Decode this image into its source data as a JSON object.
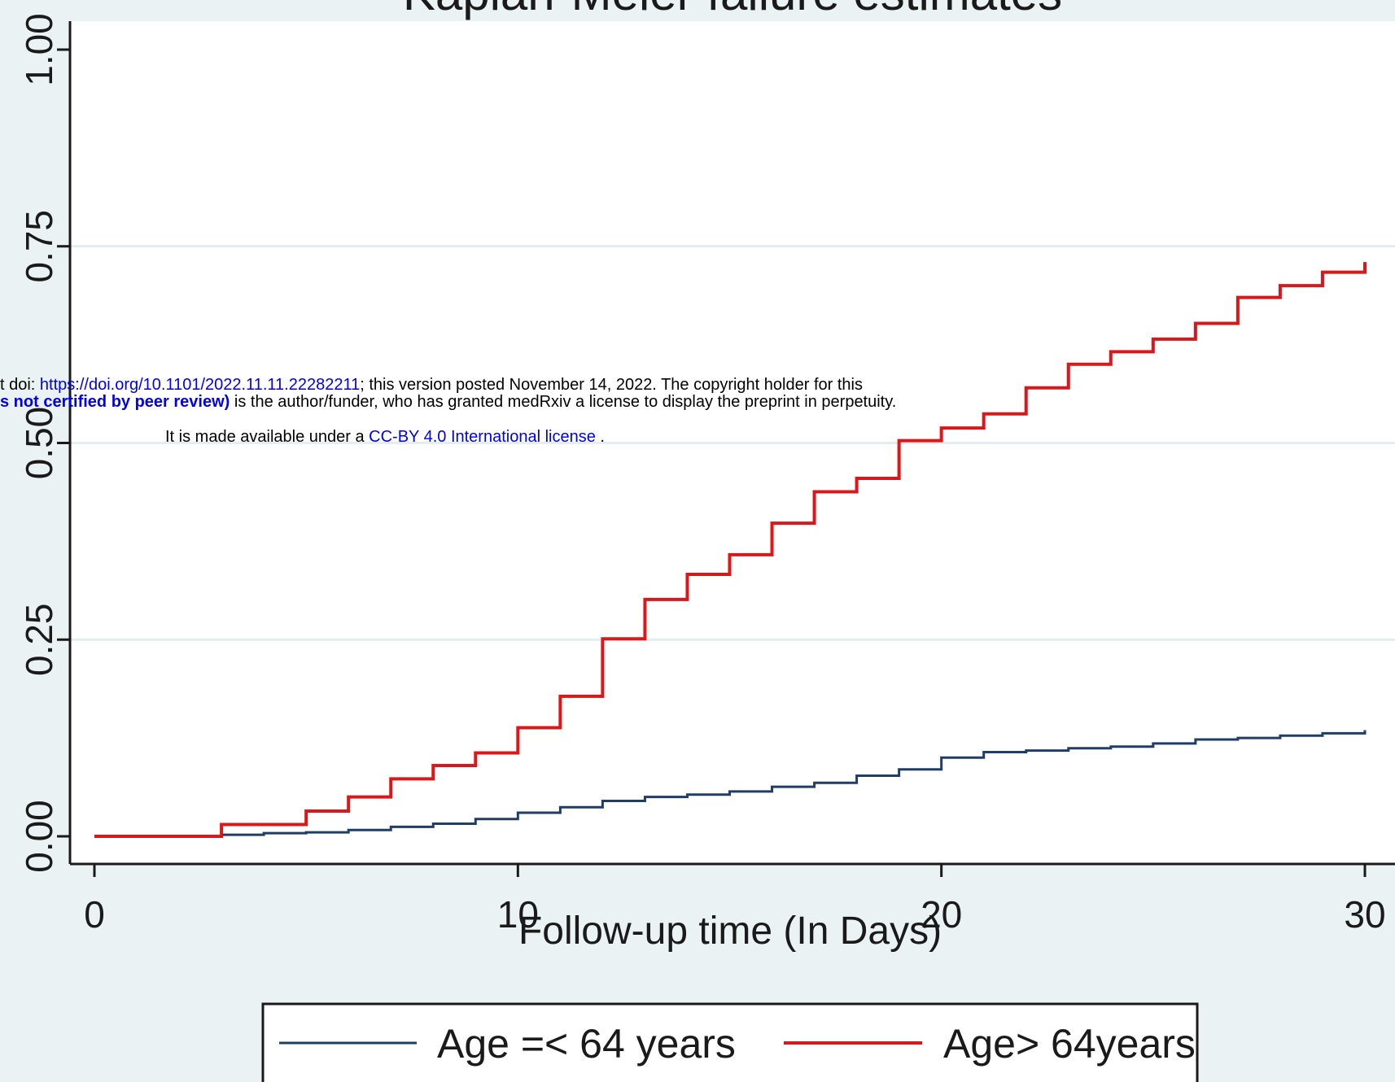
{
  "chart_data": {
    "type": "line",
    "step": true,
    "title": "Kaplan-Meier failure estimates",
    "xlabel": "Follow-up time (In Days)",
    "ylabel": "",
    "xlim": [
      0,
      30
    ],
    "ylim": [
      0,
      1
    ],
    "x_ticks": [
      "0",
      "10",
      "20",
      "30"
    ],
    "y_ticks": [
      "0.00",
      "0.25",
      "0.50",
      "0.75",
      "1.00"
    ],
    "grid": true,
    "legend_position": "bottom",
    "series": [
      {
        "name": "Age =< 64  years",
        "color": "#1f3d66",
        "x": [
          0,
          3,
          4,
          5,
          6,
          7,
          8,
          9,
          10,
          11,
          12,
          13,
          14,
          15,
          16,
          17,
          18,
          19,
          20,
          21,
          22,
          23,
          24,
          25,
          26,
          27,
          28,
          29,
          30
        ],
        "y": [
          0,
          0.002,
          0.004,
          0.005,
          0.008,
          0.012,
          0.016,
          0.022,
          0.03,
          0.037,
          0.045,
          0.05,
          0.053,
          0.057,
          0.063,
          0.068,
          0.077,
          0.085,
          0.1,
          0.107,
          0.109,
          0.112,
          0.114,
          0.118,
          0.123,
          0.125,
          0.128,
          0.131,
          0.135
        ]
      },
      {
        "name": "Age> 64years",
        "color": "#d7191c",
        "x": [
          0,
          3,
          4,
          5,
          6,
          7,
          8,
          9,
          10,
          11,
          12,
          13,
          14,
          15,
          16,
          17,
          18,
          19,
          20,
          21,
          22,
          23,
          24,
          25,
          26,
          27,
          28,
          29,
          30
        ],
        "y": [
          0,
          0.015,
          0.015,
          0.032,
          0.05,
          0.073,
          0.09,
          0.106,
          0.138,
          0.178,
          0.251,
          0.301,
          0.333,
          0.358,
          0.398,
          0.438,
          0.455,
          0.503,
          0.519,
          0.537,
          0.57,
          0.6,
          0.616,
          0.632,
          0.652,
          0.685,
          0.7,
          0.717,
          0.73
        ]
      }
    ]
  },
  "overlay": {
    "line1_prefix": "t doi: ",
    "line1_link": "https://doi.org/10.1101/2022.11.11.22282211",
    "line1_suffix": "; this version posted November 14, 2022. The copyright holder for this",
    "line2_bold": "s not certified by peer review)",
    "line2_suffix": " is the author/funder, who has granted medRxiv a license to display the preprint in perpetuity.",
    "line3_prefix": "It is made available under a ",
    "line3_link": "CC-BY 4.0 International license",
    "line3_suffix": " ."
  }
}
